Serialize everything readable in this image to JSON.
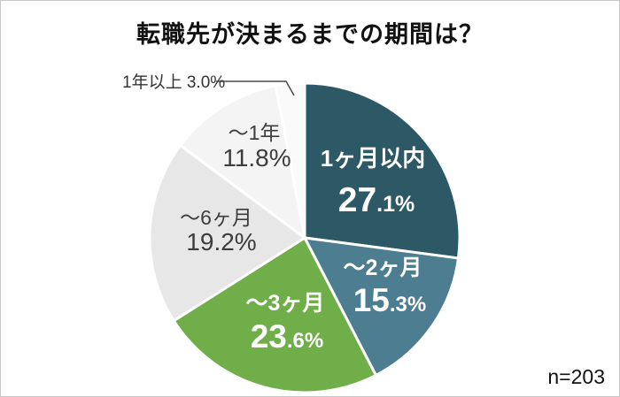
{
  "chart_data": {
    "type": "pie",
    "title": "転職先が決まるまでの期間は？",
    "sample_label": "n=203",
    "start_angle_deg": 0,
    "direction": "clockwise",
    "legend_position": "none",
    "categories": [
      "1ヶ月以内",
      "～2ヶ月",
      "～3ヶ月",
      "～6ヶ月",
      "～1年",
      "1年以上"
    ],
    "values": [
      27.1,
      15.3,
      23.6,
      19.2,
      11.8,
      3.0
    ],
    "segments": [
      {
        "label": "1ヶ月以内",
        "value": 27.1,
        "display": "27.1%",
        "color": "#2d5966",
        "text_color": "#ffffff",
        "style": "split-bold",
        "label_inside": true
      },
      {
        "label": "～2ヶ月",
        "value": 15.3,
        "display": "15.3%",
        "color": "#4c7d90",
        "text_color": "#ffffff",
        "style": "split-bold",
        "label_inside": true
      },
      {
        "label": "～3ヶ月",
        "value": 23.6,
        "display": "23.6%",
        "color": "#6fae49",
        "text_color": "#ffffff",
        "style": "split-bold",
        "label_inside": true
      },
      {
        "label": "～6ヶ月",
        "value": 19.2,
        "display": "19.2%",
        "color": "#e8e7e7",
        "text_color": "#3d3d3d",
        "style": "plain",
        "label_inside": true
      },
      {
        "label": "～1年",
        "value": 11.8,
        "display": "11.8%",
        "color": "#f4f4f4",
        "text_color": "#3d3d3d",
        "style": "plain",
        "label_inside": true
      },
      {
        "label": "1年以上",
        "value": 3.0,
        "display": "3.0%",
        "color": "#fafafa",
        "text_color": "#333333",
        "style": "callout",
        "label_inside": false,
        "callout_text": "1年以上 3.0%"
      }
    ],
    "separator_color": "#ffffff"
  }
}
